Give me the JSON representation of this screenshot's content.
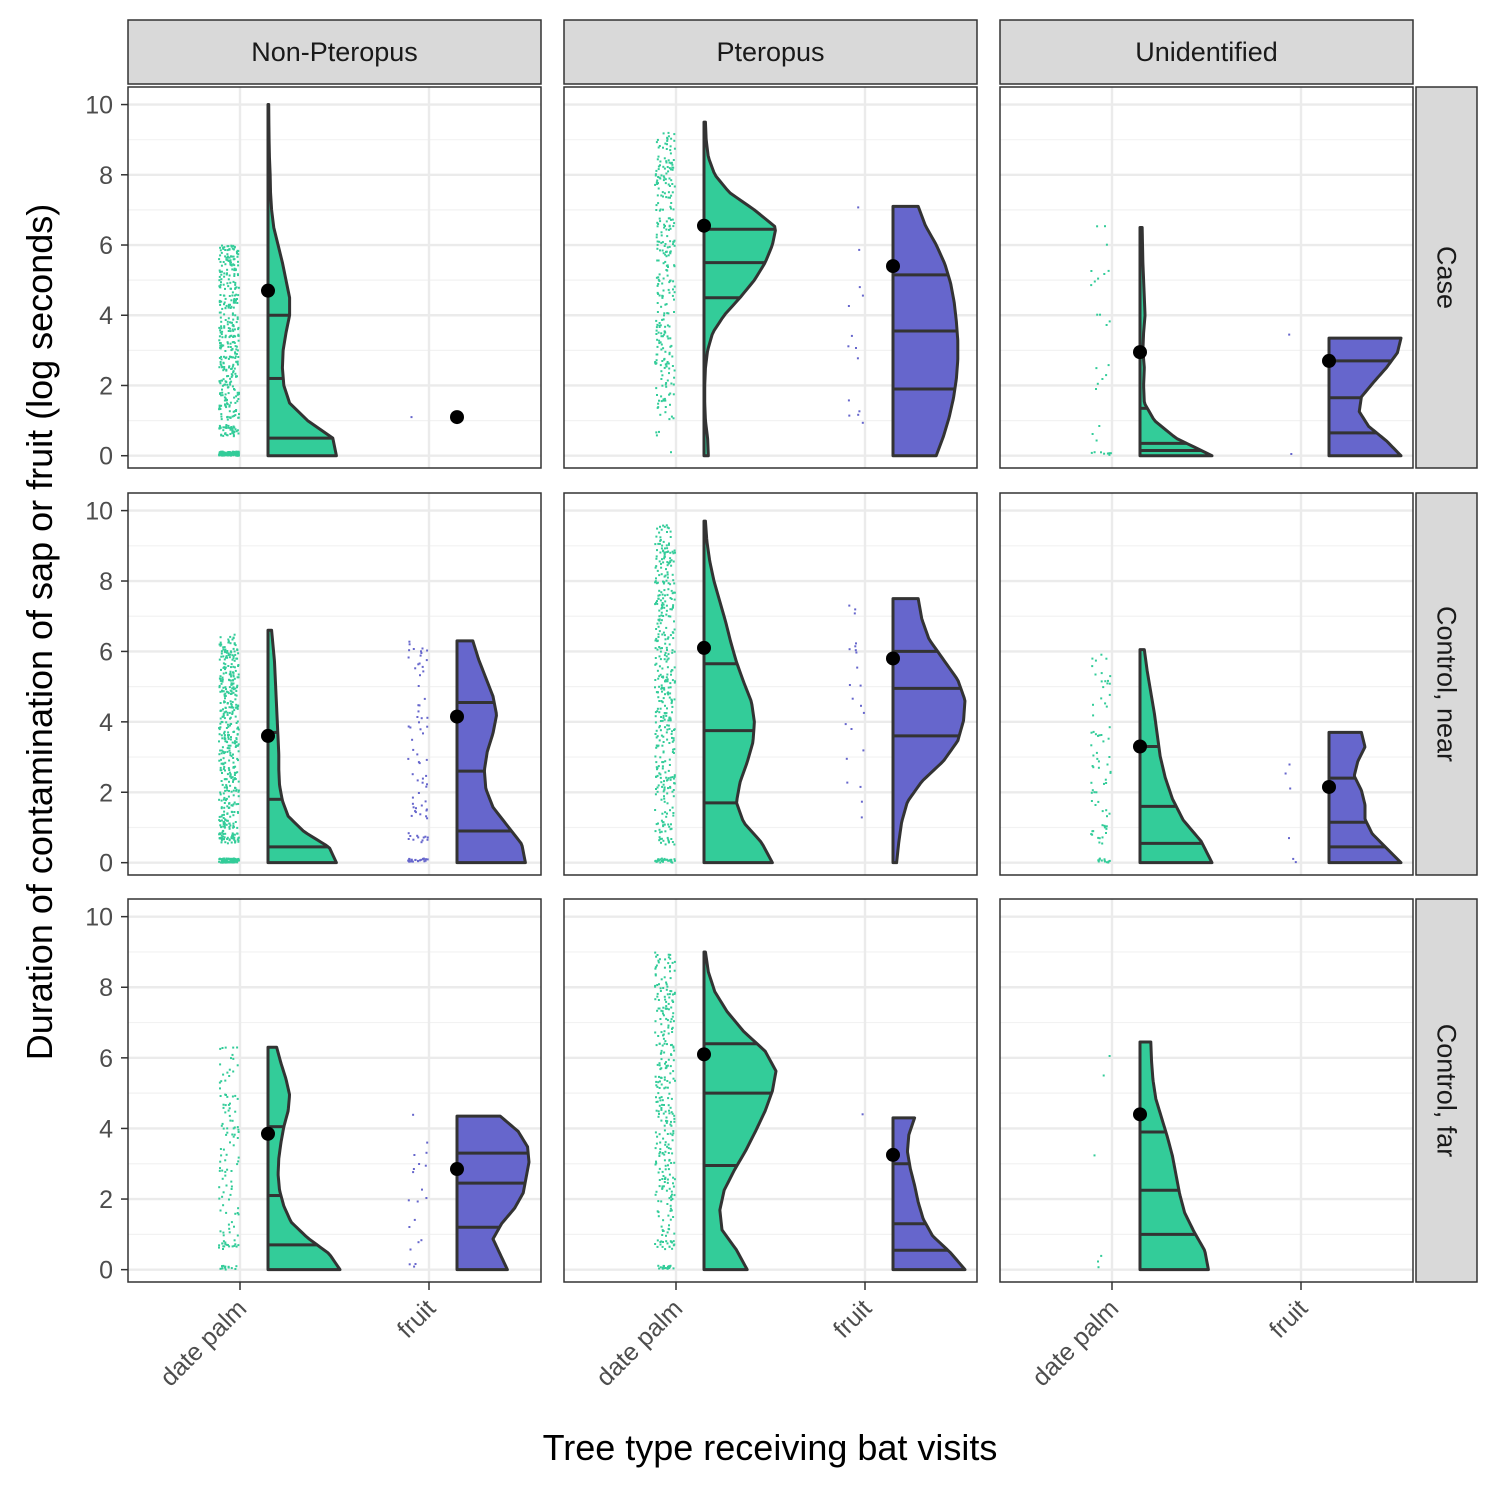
{
  "chart_data": {
    "type": "violin",
    "xlabel": "Tree type receiving bat visits",
    "ylabel": "Duration of contamination of sap or fruit (log seconds)",
    "categories": [
      "date palm",
      "fruit"
    ],
    "col_facets": [
      "Non-Pteropus",
      "Pteropus",
      "Unidentified"
    ],
    "row_facets": [
      "Case",
      "Control, near",
      "Control, far"
    ],
    "ylim": [
      -0.35,
      10.5
    ],
    "yticks": [
      0,
      2,
      4,
      6,
      8,
      10
    ],
    "grid": true,
    "colors": {
      "date palm": "#33CC99",
      "fruit": "#6666CC",
      "outline": "#333333",
      "mean_point": "#000000",
      "strip_bg": "#D9D9D9"
    },
    "panels": [
      {
        "row": "Case",
        "col": "Non-Pteropus",
        "groups": [
          {
            "category": "date palm",
            "mean": 4.7,
            "quartiles": [
              0.5,
              2.2,
              4.0
            ],
            "y_range": [
              0,
              10
            ],
            "density": [
              0.95,
              0.9,
              0.55,
              0.3,
              0.22,
              0.2,
              0.21,
              0.25,
              0.3,
              0.3,
              0.25,
              0.2,
              0.14,
              0.08,
              0.05,
              0.035,
              0.03,
              0.02,
              0.015,
              0.012,
              0.01
            ],
            "points": {
              "n": 520,
              "cluster_frac": 0.3,
              "spread": [
                0.8,
                6.0
              ]
            }
          },
          {
            "category": "fruit",
            "mean": 1.1,
            "quartiles": null,
            "y_range": null,
            "density": null,
            "points": {
              "n": 1,
              "cluster_frac": 0,
              "spread": [
                1.1,
                1.1
              ]
            }
          }
        ]
      },
      {
        "row": "Case",
        "col": "Pteropus",
        "groups": [
          {
            "category": "date palm",
            "mean": 6.55,
            "quartiles": [
              4.5,
              5.5,
              6.45
            ],
            "y_range": [
              0,
              9.5
            ],
            "density": [
              0.06,
              0.05,
              0.02,
              0.01,
              0.01,
              0.02,
              0.05,
              0.12,
              0.28,
              0.5,
              0.7,
              0.85,
              0.95,
              1.0,
              0.7,
              0.35,
              0.15,
              0.06,
              0.03,
              0.02
            ],
            "points": {
              "n": 290,
              "cluster_frac": 0.02,
              "spread": [
                1.0,
                9.2
              ]
            }
          },
          {
            "category": "fruit",
            "mean": 5.4,
            "quartiles": [
              1.9,
              3.55,
              5.15
            ],
            "y_range": [
              0,
              7.1
            ],
            "density": [
              0.6,
              0.7,
              0.78,
              0.84,
              0.88,
              0.9,
              0.9,
              0.88,
              0.85,
              0.8,
              0.72,
              0.6,
              0.45,
              0.35
            ],
            "points": {
              "n": 14,
              "cluster_frac": 0,
              "spread": [
                0.0,
                7.2
              ]
            }
          }
        ]
      },
      {
        "row": "Case",
        "col": "Unidentified",
        "groups": [
          {
            "category": "date palm",
            "mean": 2.95,
            "quartiles": [
              0.15,
              0.35,
              1.35
            ],
            "y_range": [
              0,
              6.5
            ],
            "density": [
              1.0,
              0.5,
              0.2,
              0.06,
              0.05,
              0.06,
              0.04,
              0.05,
              0.07,
              0.06,
              0.05,
              0.04,
              0.035,
              0.03
            ],
            "points": {
              "n": 30,
              "cluster_frac": 0.3,
              "spread": [
                0.3,
                6.6
              ]
            }
          },
          {
            "category": "fruit",
            "mean": 2.7,
            "quartiles": [
              0.65,
              1.65,
              2.7
            ],
            "y_range": [
              0,
              3.35
            ],
            "density": [
              1.0,
              0.8,
              0.55,
              0.42,
              0.45,
              0.62,
              0.8,
              0.95,
              1.0
            ],
            "points": {
              "n": 2,
              "cluster_frac": 0,
              "spread": [
                0.05,
                3.45
              ]
            }
          }
        ]
      },
      {
        "row": "Control, near",
        "col": "Non-Pteropus",
        "groups": [
          {
            "category": "date palm",
            "mean": 3.6,
            "quartiles": [
              0.45,
              1.8,
              3.7
            ],
            "y_range": [
              0,
              6.6
            ],
            "density": [
              0.95,
              0.85,
              0.5,
              0.28,
              0.2,
              0.16,
              0.15,
              0.15,
              0.14,
              0.13,
              0.12,
              0.11,
              0.1,
              0.09,
              0.07,
              0.05
            ],
            "points": {
              "n": 540,
              "cluster_frac": 0.22,
              "spread": [
                0.6,
                6.5
              ]
            }
          },
          {
            "category": "fruit",
            "mean": 4.15,
            "quartiles": [
              0.9,
              2.6,
              4.55
            ],
            "y_range": [
              0,
              6.3
            ],
            "density": [
              0.95,
              0.9,
              0.7,
              0.5,
              0.4,
              0.38,
              0.42,
              0.5,
              0.55,
              0.5,
              0.4,
              0.3,
              0.22
            ],
            "points": {
              "n": 95,
              "cluster_frac": 0.3,
              "spread": [
                0.6,
                6.3
              ]
            }
          }
        ]
      },
      {
        "row": "Control, near",
        "col": "Pteropus",
        "groups": [
          {
            "category": "date palm",
            "mean": 6.1,
            "quartiles": [
              1.7,
              3.75,
              5.65
            ],
            "y_range": [
              0,
              9.7
            ],
            "density": [
              0.95,
              0.8,
              0.55,
              0.45,
              0.5,
              0.6,
              0.68,
              0.7,
              0.66,
              0.55,
              0.45,
              0.37,
              0.3,
              0.22,
              0.14,
              0.08,
              0.04,
              0.02
            ],
            "points": {
              "n": 440,
              "cluster_frac": 0.08,
              "spread": [
                0.5,
                9.6
              ]
            }
          },
          {
            "category": "fruit",
            "mean": 5.8,
            "quartiles": [
              3.6,
              4.95,
              6.0
            ],
            "y_range": [
              0,
              7.5
            ],
            "density": [
              0.05,
              0.08,
              0.12,
              0.2,
              0.4,
              0.7,
              0.9,
              0.98,
              1.0,
              0.9,
              0.7,
              0.5,
              0.4,
              0.35
            ],
            "points": {
              "n": 22,
              "cluster_frac": 0,
              "spread": [
                1.1,
                7.45
              ]
            }
          }
        ]
      },
      {
        "row": "Control, near",
        "col": "Unidentified",
        "groups": [
          {
            "category": "date palm",
            "mean": 3.3,
            "quartiles": [
              0.55,
              1.6,
              3.3
            ],
            "y_range": [
              0,
              6.05
            ],
            "density": [
              1.0,
              0.85,
              0.6,
              0.45,
              0.35,
              0.28,
              0.24,
              0.2,
              0.15,
              0.1,
              0.06
            ],
            "points": {
              "n": 85,
              "cluster_frac": 0.2,
              "spread": [
                0.4,
                6.0
              ]
            }
          },
          {
            "category": "fruit",
            "mean": 2.15,
            "quartiles": [
              0.45,
              1.15,
              2.4
            ],
            "y_range": [
              0,
              3.7
            ],
            "density": [
              1.0,
              0.8,
              0.6,
              0.5,
              0.5,
              0.45,
              0.35,
              0.4,
              0.5,
              0.45
            ],
            "points": {
              "n": 6,
              "cluster_frac": 0.2,
              "spread": [
                0.1,
                3.6
              ]
            }
          }
        ]
      },
      {
        "row": "Control, far",
        "col": "Non-Pteropus",
        "groups": [
          {
            "category": "date palm",
            "mean": 3.85,
            "quartiles": [
              0.7,
              2.1,
              4.05
            ],
            "y_range": [
              0,
              6.3
            ],
            "density": [
              1.0,
              0.85,
              0.55,
              0.32,
              0.22,
              0.16,
              0.14,
              0.15,
              0.18,
              0.22,
              0.28,
              0.3,
              0.25,
              0.18,
              0.12
            ],
            "points": {
              "n": 130,
              "cluster_frac": 0.2,
              "spread": [
                0.5,
                6.3
              ]
            }
          },
          {
            "category": "fruit",
            "mean": 2.85,
            "quartiles": [
              1.2,
              2.45,
              3.3
            ],
            "y_range": [
              0,
              4.35
            ],
            "density": [
              0.7,
              0.6,
              0.5,
              0.62,
              0.8,
              0.92,
              0.96,
              1.0,
              0.98,
              0.85,
              0.6
            ],
            "points": {
              "n": 20,
              "cluster_frac": 0.2,
              "spread": [
                0.1,
                4.4
              ]
            }
          }
        ]
      },
      {
        "row": "Control, far",
        "col": "Pteropus",
        "groups": [
          {
            "category": "date palm",
            "mean": 6.1,
            "quartiles": [
              2.95,
              5.0,
              6.4
            ],
            "y_range": [
              0,
              9.0
            ],
            "density": [
              0.6,
              0.45,
              0.25,
              0.22,
              0.28,
              0.42,
              0.58,
              0.72,
              0.85,
              0.95,
              1.0,
              0.85,
              0.55,
              0.32,
              0.15,
              0.06,
              0.02
            ],
            "points": {
              "n": 330,
              "cluster_frac": 0.1,
              "spread": [
                0.5,
                9.0
              ]
            }
          },
          {
            "category": "fruit",
            "mean": 3.25,
            "quartiles": [
              0.55,
              1.3,
              3.0
            ],
            "y_range": [
              0,
              4.3
            ],
            "density": [
              1.0,
              0.8,
              0.55,
              0.42,
              0.35,
              0.3,
              0.24,
              0.2,
              0.22,
              0.3
            ],
            "points": {
              "n": 1,
              "cluster_frac": 0,
              "spread": [
                4.4,
                4.4
              ]
            }
          }
        ]
      },
      {
        "row": "Control, far",
        "col": "Unidentified",
        "groups": [
          {
            "category": "date palm",
            "mean": 4.4,
            "quartiles": [
              1.0,
              2.25,
              3.9
            ],
            "y_range": [
              0,
              6.45
            ],
            "density": [
              0.95,
              0.9,
              0.75,
              0.62,
              0.55,
              0.5,
              0.45,
              0.38,
              0.3,
              0.22,
              0.18,
              0.16,
              0.15
            ],
            "points": {
              "n": 6,
              "cluster_frac": 0.3,
              "spread": [
                0.05,
                6.5
              ]
            }
          }
        ]
      }
    ]
  }
}
